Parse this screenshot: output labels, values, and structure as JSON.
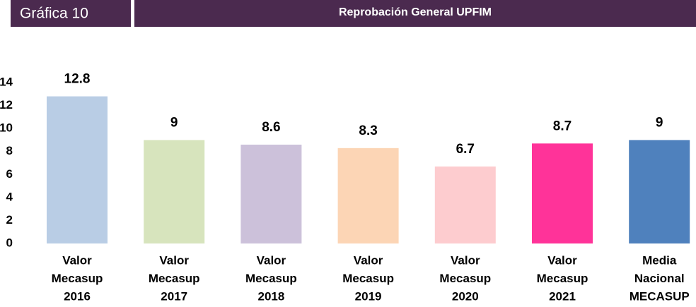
{
  "chart_data": {
    "type": "bar",
    "label": "Gráfica 10",
    "title": "Reprobación General UPFIM",
    "categories": [
      [
        "Valor",
        "Mecasup",
        "2016"
      ],
      [
        "Valor",
        "Mecasup",
        "2017"
      ],
      [
        "Valor",
        "Mecasup",
        "2018"
      ],
      [
        "Valor",
        "Mecasup",
        "2019"
      ],
      [
        "Valor",
        "Mecasup",
        "2020"
      ],
      [
        "Valor",
        "Mecasup",
        "2021"
      ],
      [
        "Media",
        "Nacional",
        "MECASUP"
      ]
    ],
    "values": [
      12.8,
      9,
      8.6,
      8.3,
      6.7,
      8.7,
      9
    ],
    "colors": [
      "#b9cde5",
      "#d7e4bd",
      "#ccc1da",
      "#fcd5b5",
      "#fdcccf",
      "#ff3399",
      "#4f81bd"
    ],
    "ylim": [
      0,
      14
    ],
    "yticks": [
      0,
      2,
      4,
      6,
      8,
      10,
      12,
      14
    ],
    "grid": false
  }
}
